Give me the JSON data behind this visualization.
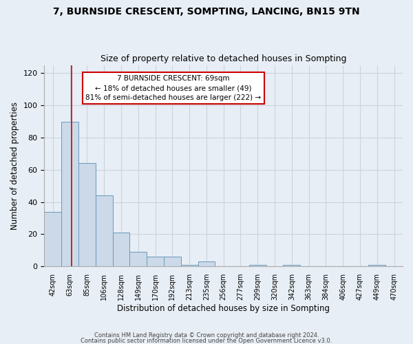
{
  "title": "7, BURNSIDE CRESCENT, SOMPTING, LANCING, BN15 9TN",
  "subtitle": "Size of property relative to detached houses in Sompting",
  "xlabel": "Distribution of detached houses by size in Sompting",
  "ylabel": "Number of detached properties",
  "categories": [
    "42sqm",
    "63sqm",
    "85sqm",
    "106sqm",
    "128sqm",
    "149sqm",
    "170sqm",
    "192sqm",
    "213sqm",
    "235sqm",
    "256sqm",
    "277sqm",
    "299sqm",
    "320sqm",
    "342sqm",
    "363sqm",
    "384sqm",
    "406sqm",
    "427sqm",
    "449sqm",
    "470sqm"
  ],
  "values": [
    34,
    90,
    64,
    44,
    21,
    9,
    6,
    6,
    1,
    3,
    0,
    0,
    1,
    0,
    1,
    0,
    0,
    0,
    0,
    1,
    0
  ],
  "bar_color": "#ccd9e8",
  "bar_edge_color": "#6699bb",
  "grid_color": "#c8d4e0",
  "bg_color": "#e8eef5",
  "red_line_x": 1.1,
  "annotation_text": "7 BURNSIDE CRESCENT: 69sqm\n← 18% of detached houses are smaller (49)\n81% of semi-detached houses are larger (222) →",
  "annotation_box_color": "#ffffff",
  "annotation_border_color": "#cc0000",
  "footnote1": "Contains HM Land Registry data © Crown copyright and database right 2024.",
  "footnote2": "Contains public sector information licensed under the Open Government Licence v3.0.",
  "ylim": [
    0,
    125
  ],
  "yticks": [
    0,
    20,
    40,
    60,
    80,
    100,
    120
  ]
}
